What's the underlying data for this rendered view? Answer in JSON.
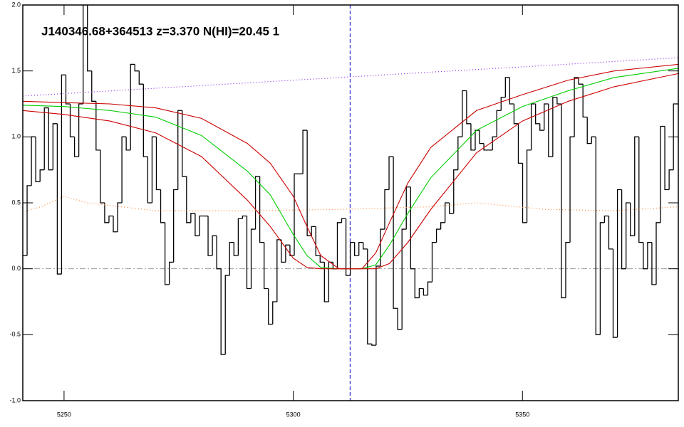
{
  "chart_data": {
    "type": "line",
    "title": "J140346.68+364513 z=3.370 N(HI)=20.45 1",
    "xlim": [
      5241,
      5384
    ],
    "ylim": [
      -1,
      2
    ],
    "xticks": [
      5250,
      5300,
      5350
    ],
    "yticks": [
      {
        "value": -1,
        "label": "-1.0"
      },
      -0.5,
      {
        "value": 0,
        "label": "0.0"
      },
      0.5,
      {
        "value": 1,
        "label": "1.0"
      },
      1.5,
      {
        "value": 2,
        "label": "2.0"
      }
    ],
    "reference_lines": {
      "y": 0,
      "y_color": "#999999",
      "x": 5312.4,
      "x_color": "#0000cc"
    },
    "series": [
      {
        "style": "step",
        "color": "#000000",
        "x": [
          5241.0,
          5241.94,
          5242.88,
          5243.82,
          5244.76,
          5245.7,
          5246.64,
          5247.58,
          5248.52,
          5249.46,
          5250.4,
          5251.34,
          5252.28,
          5253.22,
          5254.16,
          5255.1,
          5256.04,
          5256.98,
          5257.92,
          5258.86,
          5259.8,
          5260.74,
          5261.68,
          5262.62,
          5263.56,
          5264.5,
          5265.44,
          5266.38,
          5267.32,
          5268.26,
          5269.2,
          5270.14,
          5271.08,
          5272.02,
          5272.96,
          5273.9,
          5274.84,
          5275.78,
          5276.72,
          5277.66,
          5278.6,
          5279.54,
          5280.48,
          5281.42,
          5282.36,
          5283.3,
          5284.24,
          5285.18,
          5286.12,
          5287.06,
          5288.0,
          5288.94,
          5289.88,
          5290.82,
          5291.76,
          5292.7,
          5293.64,
          5294.58,
          5295.52,
          5296.46,
          5297.4,
          5298.34,
          5299.28,
          5300.22,
          5301.16,
          5302.1,
          5303.04,
          5303.98,
          5304.92,
          5305.86,
          5306.8,
          5307.74,
          5308.68,
          5309.62,
          5310.56,
          5311.5,
          5312.44,
          5313.38,
          5314.32,
          5315.26,
          5316.2,
          5317.14,
          5318.08,
          5319.02,
          5319.96,
          5320.9,
          5321.84,
          5322.78,
          5323.72,
          5324.66,
          5325.6,
          5326.54,
          5327.48,
          5328.42,
          5329.36,
          5330.3,
          5331.24,
          5332.18,
          5333.12,
          5334.06,
          5335.0,
          5335.94,
          5336.88,
          5337.82,
          5338.76,
          5339.7,
          5340.64,
          5341.58,
          5342.52,
          5343.46,
          5344.4,
          5345.34,
          5346.28,
          5347.22,
          5348.16,
          5349.1,
          5350.04,
          5350.98,
          5351.92,
          5352.86,
          5353.8,
          5354.74,
          5355.68,
          5356.62,
          5357.56,
          5358.5,
          5359.44,
          5360.38,
          5361.32,
          5362.26,
          5363.2,
          5364.14,
          5365.08,
          5366.02,
          5366.96,
          5367.9,
          5368.84,
          5369.78,
          5370.72,
          5371.66,
          5372.6,
          5373.54,
          5374.48,
          5375.42,
          5376.36,
          5377.3,
          5378.24,
          5379.18,
          5380.12,
          5381.06,
          5382.0,
          5382.94
        ],
        "values": [
          0.1,
          0.63,
          1.0,
          0.66,
          0.75,
          1.22,
          0.75,
          1.1,
          -0.04,
          1.47,
          1.25,
          1.0,
          0.85,
          1.25,
          2.0,
          1.5,
          1.27,
          0.9,
          0.5,
          0.35,
          0.4,
          0.28,
          0.5,
          1.0,
          0.9,
          1.55,
          1.5,
          1.4,
          0.85,
          0.5,
          1.0,
          0.6,
          0.35,
          -0.12,
          0.05,
          0.6,
          1.2,
          0.7,
          0.35,
          0.42,
          0.25,
          0.4,
          0.4,
          0.1,
          0.25,
          0.0,
          -0.65,
          -0.05,
          0.2,
          0.1,
          0.38,
          0.4,
          -0.15,
          0.3,
          0.7,
          0.2,
          -0.15,
          -0.42,
          -0.25,
          0.22,
          0.05,
          0.18,
          0.1,
          0.72,
          0.72,
          1.05,
          0.25,
          0.32,
          0.1,
          0.05,
          -0.25,
          0.05,
          0.0,
          0.35,
          0.38,
          -0.05,
          0.2,
          0.1,
          0.2,
          0.15,
          -0.57,
          -0.58,
          0.02,
          0.3,
          0.6,
          0.85,
          -0.3,
          -0.46,
          0.3,
          0.62,
          0.0,
          -0.22,
          -0.15,
          -0.2,
          -0.1,
          0.2,
          0.3,
          0.35,
          0.5,
          0.42,
          0.75,
          1.0,
          1.35,
          1.1,
          0.9,
          1.05,
          0.95,
          0.9,
          0.9,
          1.0,
          1.2,
          1.3,
          1.45,
          1.25,
          1.1,
          0.8,
          0.35,
          0.9,
          1.25,
          1.1,
          1.05,
          1.25,
          0.85,
          1.3,
          1.25,
          -0.22,
          0.2,
          1.0,
          1.45,
          1.4,
          1.15,
          0.95,
          1.0,
          -0.5,
          0.35,
          0.4,
          0.15,
          -0.52,
          0.6,
          0.0,
          0.5,
          0.25,
          1.0,
          0.2,
          0.0,
          0.2,
          -0.12,
          0.35,
          1.08,
          0.6,
          0.75,
          1.25
        ]
      },
      {
        "style": "dotted",
        "color": "#ff8c40",
        "x": [
          5241,
          5245,
          5250,
          5255,
          5270,
          5290,
          5310,
          5330,
          5340,
          5355,
          5370,
          5384
        ],
        "values": [
          0.43,
          0.47,
          0.55,
          0.5,
          0.44,
          0.44,
          0.45,
          0.47,
          0.5,
          0.45,
          0.44,
          0.47
        ]
      },
      {
        "style": "dotted",
        "color": "#8a2be2",
        "x": [
          5241,
          5384
        ],
        "values": [
          1.31,
          1.6
        ]
      },
      {
        "style": "solid",
        "color": "#00cc00",
        "x": [
          5241,
          5250,
          5260,
          5270,
          5280,
          5290,
          5295,
          5300,
          5303,
          5306,
          5310,
          5315,
          5318,
          5321,
          5325,
          5330,
          5340,
          5350,
          5360,
          5370,
          5384
        ],
        "values": [
          1.24,
          1.23,
          1.2,
          1.15,
          1.01,
          0.74,
          0.56,
          0.26,
          0.1,
          0.01,
          0,
          0,
          0.03,
          0.18,
          0.42,
          0.69,
          1.05,
          1.23,
          1.35,
          1.45,
          1.52
        ]
      },
      {
        "style": "solid",
        "color": "#cc0000",
        "x": [
          5241,
          5250,
          5260,
          5270,
          5280,
          5290,
          5295,
          5300,
          5303,
          5306,
          5310,
          5315,
          5318,
          5321,
          5325,
          5330,
          5340,
          5350,
          5360,
          5370,
          5384
        ],
        "values": [
          1.27,
          1.26,
          1.25,
          1.22,
          1.14,
          0.95,
          0.8,
          0.55,
          0.32,
          0.1,
          0,
          0,
          0.12,
          0.35,
          0.65,
          0.92,
          1.2,
          1.32,
          1.43,
          1.5,
          1.55
        ]
      },
      {
        "style": "solid",
        "color": "#cc0000",
        "x": [
          5241,
          5250,
          5260,
          5270,
          5280,
          5290,
          5295,
          5300,
          5303,
          5306,
          5310,
          5315,
          5318,
          5321,
          5325,
          5330,
          5340,
          5350,
          5360,
          5370,
          5384
        ],
        "values": [
          1.2,
          1.17,
          1.12,
          1.03,
          0.85,
          0.52,
          0.32,
          0.08,
          0.01,
          0,
          0,
          0,
          0,
          0.04,
          0.2,
          0.45,
          0.88,
          1.12,
          1.27,
          1.38,
          1.48
        ]
      }
    ]
  }
}
